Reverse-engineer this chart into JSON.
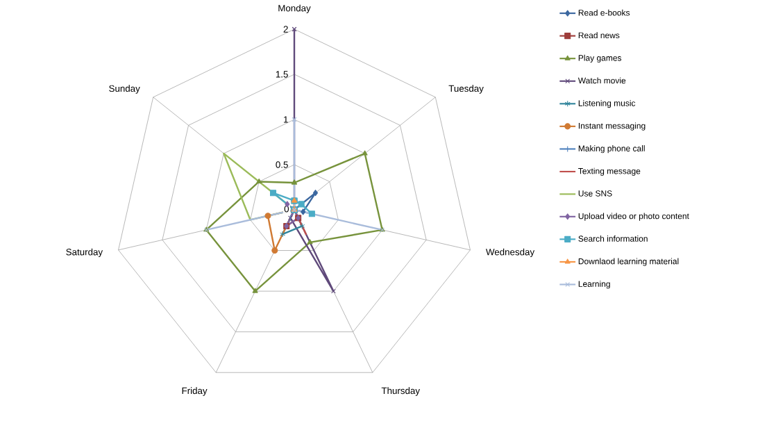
{
  "chart_data": {
    "type": "radar",
    "categories": [
      "Monday",
      "Tuesday",
      "Wednesday",
      "Thursday",
      "Friday",
      "Saturday",
      "Sunday"
    ],
    "ylim": [
      0,
      2
    ],
    "yticks": [
      0,
      0.5,
      1,
      1.5,
      2
    ],
    "grid": true,
    "legend": "right",
    "series": [
      {
        "name": "Read e-books",
        "color": "#3c68a0",
        "marker": "diamond",
        "values": [
          0,
          0.3,
          0.1,
          0,
          0,
          0,
          0
        ]
      },
      {
        "name": "Read news",
        "color": "#9e3d3a",
        "marker": "square",
        "values": [
          0,
          0,
          0,
          0.1,
          0.2,
          0,
          0
        ]
      },
      {
        "name": "Play games",
        "color": "#77933c",
        "marker": "triangle",
        "values": [
          0.3,
          1,
          1,
          0.4,
          1,
          1,
          0.5
        ]
      },
      {
        "name": "Watch movie",
        "color": "#604a7b",
        "marker": "cross",
        "values": [
          2,
          0,
          0,
          1,
          0.1,
          0,
          0
        ]
      },
      {
        "name": "Listening music",
        "color": "#31859c",
        "marker": "star",
        "values": [
          0,
          0,
          0,
          0.2,
          0.3,
          0,
          0
        ]
      },
      {
        "name": "Instant messaging",
        "color": "#d07a33",
        "marker": "circle",
        "values": [
          0.1,
          0,
          0,
          0,
          0.5,
          0.3,
          0
        ]
      },
      {
        "name": "Making phone call",
        "color": "#4f81bd",
        "marker": "plus",
        "values": [
          0,
          0,
          0,
          0,
          0.1,
          0,
          0
        ]
      },
      {
        "name": "Texting message",
        "color": "#c0504d",
        "marker": "none",
        "values": [
          0,
          0,
          0,
          0.3,
          0,
          0,
          0
        ]
      },
      {
        "name": "Use SNS",
        "color": "#9bbb59",
        "marker": "none",
        "values": [
          0,
          0,
          0,
          0,
          0,
          0.5,
          1
        ]
      },
      {
        "name": "Upload video or photo content",
        "color": "#8064a2",
        "marker": "diamond",
        "values": [
          0,
          0,
          0,
          0.1,
          0.2,
          0,
          0.1
        ]
      },
      {
        "name": "Search information",
        "color": "#4bacc6",
        "marker": "square",
        "values": [
          0.1,
          0.1,
          0.2,
          0,
          0,
          0,
          0.3
        ]
      },
      {
        "name": "Downlaod learning material",
        "color": "#f79646",
        "marker": "triangle",
        "values": [
          0.1,
          0,
          0,
          0,
          0,
          0,
          0
        ]
      },
      {
        "name": "Learning",
        "color": "#a9bcdb",
        "marker": "cross",
        "values": [
          1,
          0,
          1,
          0,
          0,
          1,
          0
        ]
      }
    ]
  }
}
